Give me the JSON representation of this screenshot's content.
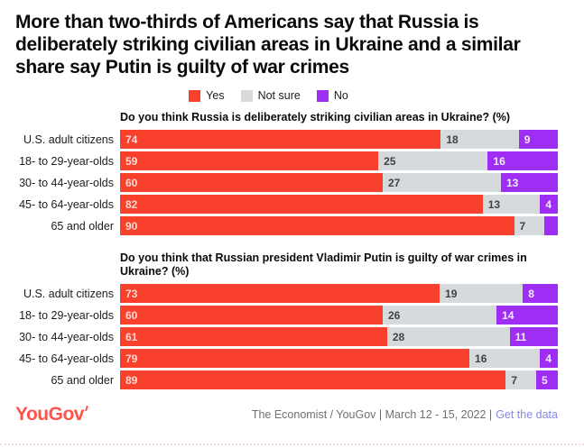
{
  "title": "More than two-thirds of Americans say that Russia is deliberately striking civilian areas in Ukraine and a similar share say Putin is guilty of war crimes",
  "legend": [
    {
      "label": "Yes",
      "color": "#f9402c"
    },
    {
      "label": "Not sure",
      "color": "#d7dadd"
    },
    {
      "label": "No",
      "color": "#9e2ef3"
    }
  ],
  "colors": {
    "yes": "#f9402c",
    "not_sure": "#d7dadd",
    "no": "#9e2ef3",
    "yes_label_text": "#ffd9d1",
    "not_sure_label_text": "#3e4246",
    "no_label_text": "#f5ebfd"
  },
  "chart_data": [
    {
      "type": "bar",
      "stacked": true,
      "orientation": "horizontal",
      "title": "Do you think Russia is deliberately striking civilian areas in Ukraine? (%)",
      "categories": [
        "U.S. adult citizens",
        "18- to 29-year-olds",
        "30- to 44-year-olds",
        "45- to 64-year-olds",
        "65 and older"
      ],
      "series": [
        {
          "name": "Yes",
          "color": "#f9402c",
          "text_color": "#ffd9d1",
          "values": [
            74,
            59,
            60,
            82,
            90
          ],
          "labels": [
            "74",
            "59",
            "60",
            "82",
            "90"
          ]
        },
        {
          "name": "Not sure",
          "color": "#d7dadd",
          "text_color": "#3e4246",
          "values": [
            18,
            25,
            27,
            13,
            7
          ],
          "labels": [
            "18",
            "25",
            "27",
            "13",
            "7"
          ]
        },
        {
          "name": "No",
          "color": "#9e2ef3",
          "text_color": "#f5ebfd",
          "values": [
            9,
            16,
            13,
            4,
            3
          ],
          "labels": [
            "9",
            "16",
            "13",
            "4",
            ""
          ]
        }
      ],
      "xlim": [
        0,
        100
      ],
      "grid": false,
      "legend_position": "top-center"
    },
    {
      "type": "bar",
      "stacked": true,
      "orientation": "horizontal",
      "title": "Do you think that Russian president Vladimir Putin is guilty of war crimes in Ukraine? (%)",
      "categories": [
        "U.S. adult citizens",
        "18- to 29-year-olds",
        "30- to 44-year-olds",
        "45- to 64-year-olds",
        "65 and older"
      ],
      "series": [
        {
          "name": "Yes",
          "color": "#f9402c",
          "text_color": "#ffd9d1",
          "values": [
            73,
            60,
            61,
            79,
            89
          ],
          "labels": [
            "73",
            "60",
            "61",
            "79",
            "89"
          ]
        },
        {
          "name": "Not sure",
          "color": "#d7dadd",
          "text_color": "#3e4246",
          "values": [
            19,
            26,
            28,
            16,
            7
          ],
          "labels": [
            "19",
            "26",
            "28",
            "16",
            "7"
          ]
        },
        {
          "name": "No",
          "color": "#9e2ef3",
          "text_color": "#f5ebfd",
          "values": [
            8,
            14,
            11,
            4,
            5
          ],
          "labels": [
            "8",
            "14",
            "11",
            "4",
            "5"
          ]
        }
      ],
      "xlim": [
        0,
        100
      ],
      "grid": false,
      "legend_position": "top-center"
    }
  ],
  "footer": {
    "logo": "YouGov",
    "source": "The Economist / YouGov | March 12 - 15, 2022 |",
    "link": "Get the data"
  }
}
